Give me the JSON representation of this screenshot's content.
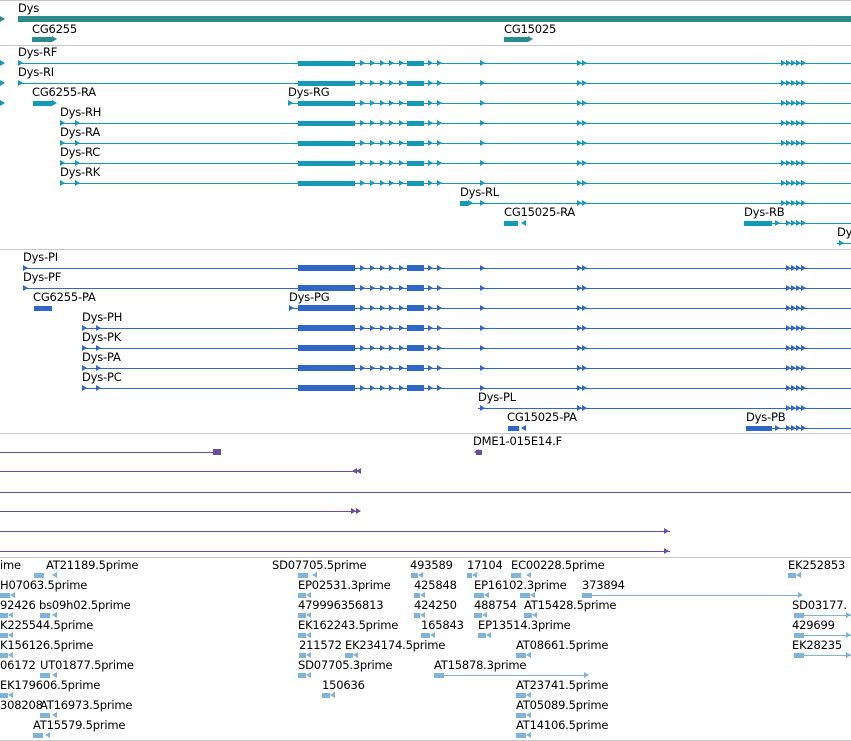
{
  "colors": {
    "gene": "#2e8b8b",
    "transcript_rna": "#1599b8",
    "transcript_protein": "#2f67c8",
    "oligo": "#6a4da0",
    "est": "#7fb4d8",
    "separator": "#c8c8c8"
  },
  "tracks": {
    "genes": [
      {
        "label": "Dys"
      },
      {
        "label": "CG6255"
      },
      {
        "label": "CG15025"
      }
    ],
    "transcripts": [
      {
        "label": "Dys-RF"
      },
      {
        "label": "Dys-RI"
      },
      {
        "label": "CG6255-RA"
      },
      {
        "label": "Dys-RG"
      },
      {
        "label": "Dys-RH"
      },
      {
        "label": "Dys-RA"
      },
      {
        "label": "Dys-RC"
      },
      {
        "label": "Dys-RK"
      },
      {
        "label": "Dys-RL"
      },
      {
        "label": "CG15025-RA"
      },
      {
        "label": "Dys-RB"
      },
      {
        "label": "Dys"
      }
    ],
    "proteins": [
      {
        "label": "Dys-PI"
      },
      {
        "label": "Dys-PF"
      },
      {
        "label": "CG6255-PA"
      },
      {
        "label": "Dys-PG"
      },
      {
        "label": "Dys-PH"
      },
      {
        "label": "Dys-PK"
      },
      {
        "label": "Dys-PA"
      },
      {
        "label": "Dys-PC"
      },
      {
        "label": "Dys-PL"
      },
      {
        "label": "CG15025-PA"
      },
      {
        "label": "Dys-PB"
      }
    ],
    "oligos": [
      {
        "label": "DME1-015E14.F"
      }
    ],
    "ests": [
      {
        "label": "ime"
      },
      {
        "label": "AT21189.5prime"
      },
      {
        "label": "SD07705.5prime"
      },
      {
        "label": "493589"
      },
      {
        "label": "17104"
      },
      {
        "label": "EC00228.5prime"
      },
      {
        "label": "EK252853"
      },
      {
        "label": "H07063.5prime"
      },
      {
        "label": "EP02531.3prime"
      },
      {
        "label": "425848"
      },
      {
        "label": "EP16102.3prime"
      },
      {
        "label": "373894"
      },
      {
        "label": "92426"
      },
      {
        "label": "bs09h02.5prime"
      },
      {
        "label": "479996356813"
      },
      {
        "label": "424250"
      },
      {
        "label": "488754"
      },
      {
        "label": "AT15428.5prime"
      },
      {
        "label": "SD03177."
      },
      {
        "label": "K225544.5prime"
      },
      {
        "label": "EK162243.5prime"
      },
      {
        "label": "165843"
      },
      {
        "label": "EP13514.3prime"
      },
      {
        "label": "429699"
      },
      {
        "label": "K156126.5prime"
      },
      {
        "label": "211572"
      },
      {
        "label": "EK234174.5prime"
      },
      {
        "label": "AT08661.5prime"
      },
      {
        "label": "EK28235"
      },
      {
        "label": "06172"
      },
      {
        "label": "UT01877.5prime"
      },
      {
        "label": "SD07705.3prime"
      },
      {
        "label": "AT15878.3prime"
      },
      {
        "label": "EK179606.5prime"
      },
      {
        "label": "150636"
      },
      {
        "label": "AT23741.5prime"
      },
      {
        "label": "308208"
      },
      {
        "label": "AT16973.5prime"
      },
      {
        "label": "AT05089.5prime"
      },
      {
        "label": "AT15579.5prime"
      },
      {
        "label": "AT14106.5prime"
      }
    ]
  }
}
